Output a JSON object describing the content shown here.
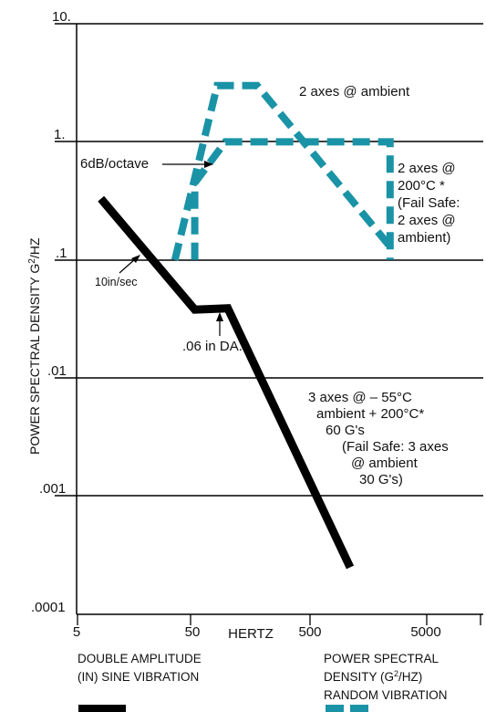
{
  "chart_data": {
    "type": "line",
    "title": "",
    "xlabel": "HERTZ",
    "ylabel": "POWER SPECTRAL DENSITY G²/HZ",
    "x_scale": "log",
    "y_scale": "log",
    "xlim": [
      4.2,
      20000
    ],
    "ylim": [
      0.0001,
      10
    ],
    "x_ticks": [
      "5",
      "50",
      "500",
      "5000"
    ],
    "y_ticks": [
      "10.",
      "1.",
      ".1",
      ".01",
      ".001",
      ".0001"
    ],
    "grid": "horizontal lines at decades",
    "series": [
      {
        "name": "DOUBLE AMPLITUDE (IN) SINE VIBRATION",
        "style": "solid",
        "color": "#000000",
        "points": [
          [
            7,
            0.33
          ],
          [
            50,
            0.038
          ],
          [
            100,
            0.039
          ],
          [
            1300,
            0.00025
          ]
        ]
      },
      {
        "name": "POWER SPECTRAL DENSITY (G²/HZ) RANDOM VIBRATION",
        "style": "dashed",
        "color": "#1a93a6",
        "points": [
          [
            33,
            0.1
          ],
          [
            80,
            3
          ],
          [
            185,
            3
          ],
          [
            3000,
            0.13
          ]
        ]
      },
      {
        "name": "POWER SPECTRAL DENSITY (G²/HZ) RANDOM VIBRATION",
        "style": "dashed",
        "color": "#1a93a6",
        "points": [
          [
            50,
            0.1
          ],
          [
            50,
            0.45
          ],
          [
            95,
            1
          ],
          [
            3000,
            1
          ],
          [
            3000,
            0.1
          ]
        ]
      }
    ],
    "annotations": [
      "2 axes @ ambient",
      "6dB/octave",
      "2 axes @",
      "200°C *",
      "(Fail Safe:",
      "2 axes @",
      "ambient)",
      "10in/sec",
      ".06 in DA.",
      "3 axes @  – 55°C",
      "ambient + 200°C*",
      "60 G's",
      "(Fail Safe: 3 axes",
      "@  ambient",
      "30 G's)"
    ],
    "legend": [
      "DOUBLE AMPLITUDE",
      "(IN) SINE VIBRATION",
      "POWER SPECTRAL",
      "DENSITY (G²/HZ)",
      "RANDOM VIBRATION"
    ]
  }
}
